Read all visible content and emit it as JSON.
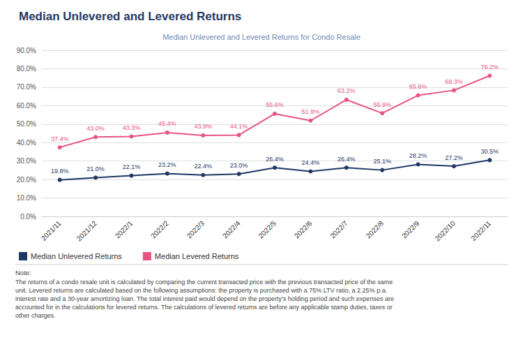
{
  "chart_data": {
    "type": "line",
    "title": "Median Unlevered and Levered Returns",
    "subtitle": "Median Unlevered and Levered Returns for Condo Resale",
    "categories": [
      "2021/11",
      "2021/12",
      "2022/1",
      "2022/2",
      "2022/3",
      "2022/4",
      "2022/5",
      "2022/6",
      "2022/7",
      "2022/8",
      "2022/9",
      "2022/10",
      "2022/11"
    ],
    "series": [
      {
        "name": "Median Unlevered Returns",
        "color": "#1f3864",
        "marker": "circle",
        "values": [
          19.8,
          21.0,
          22.1,
          23.2,
          22.4,
          23.0,
          26.4,
          24.4,
          26.4,
          25.1,
          28.2,
          27.2,
          30.5
        ],
        "value_labels": [
          "19.8%",
          "21.0%",
          "22.1%",
          "23.2%",
          "22.4%",
          "23.0%",
          "26.4%",
          "24.4%",
          "26.4%",
          "25.1%",
          "28.2%",
          "27.2%",
          "30.5%"
        ]
      },
      {
        "name": "Median Levered Returns",
        "color": "#e75480",
        "marker": "circle",
        "values": [
          37.4,
          43.0,
          43.3,
          45.4,
          43.9,
          44.1,
          55.6,
          51.9,
          63.2,
          55.9,
          65.6,
          68.3,
          76.2
        ],
        "value_labels": [
          "37.4%",
          "43.0%",
          "43.3%",
          "45.4%",
          "43.9%",
          "44.1%",
          "55.6%",
          "51.9%",
          "63.2%",
          "55.9%",
          "65.6%",
          "68.3%",
          "76.2%"
        ]
      }
    ],
    "ylim": [
      0,
      90
    ],
    "yticks": [
      {
        "value": 0,
        "label": "0.0%"
      },
      {
        "value": 10,
        "label": "10.0%"
      },
      {
        "value": 20,
        "label": "20.0%"
      },
      {
        "value": 30,
        "label": "30.0%"
      },
      {
        "value": 40,
        "label": "40.0%"
      },
      {
        "value": 50,
        "label": "50.0%"
      },
      {
        "value": 60,
        "label": "60.0%"
      },
      {
        "value": 70,
        "label": "70.0%"
      },
      {
        "value": 80,
        "label": "80.0%"
      },
      {
        "value": 90,
        "label": "90.0%"
      }
    ],
    "grid": true,
    "legend": "lower left",
    "data_labels": true,
    "annotations": [
      "Note:",
      "The returns of a condo resale unit is calculated by comparing the current transacted price with the previous transacted price of the same\nunit. Levered returns are calculated based on the following assumptions: the property is purchased with a 75% LTV ratio, a 2.25% p.a.\ninterest rate and a 30-year amortizing loan. The total interest paid would depend on the property's holding period and such expenses are\naccounted for in the calculations for levered returns. The calculations of levered returns are before any applicable stamp duties, taxes or\nother charges."
    ]
  }
}
